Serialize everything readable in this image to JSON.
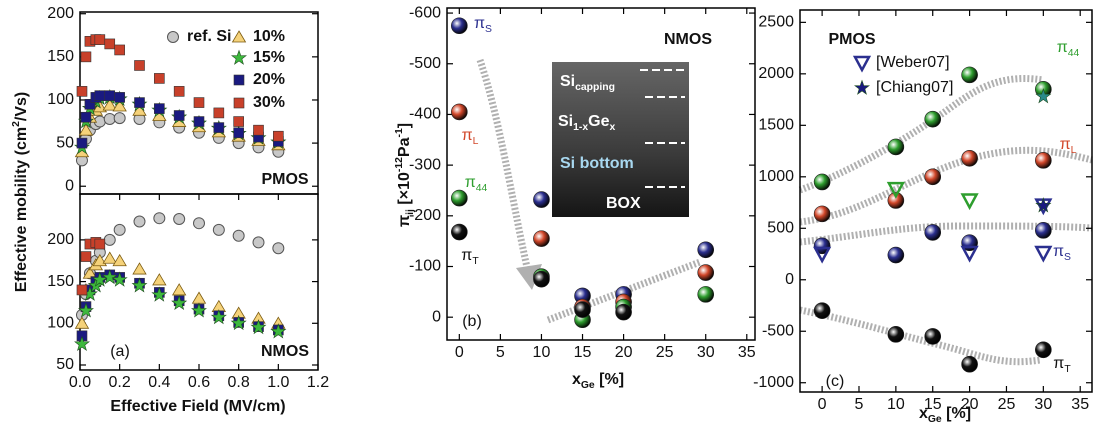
{
  "chart_data": [
    {
      "type": "scatter",
      "xlim": [
        0,
        1.2
      ],
      "ylim": [
        -9,
        202
      ],
      "yticks": [
        0,
        50,
        100,
        150,
        200
      ],
      "ylabel": [
        {
          "text": "Effective mobility (cm"
        },
        {
          "text": "2",
          "shift": "super"
        },
        {
          "text": "/Vs)"
        }
      ],
      "annotations": [
        "PMOS"
      ],
      "x": [
        0.01,
        0.03,
        0.05,
        0.08,
        0.1,
        0.15,
        0.2,
        0.3,
        0.4,
        0.5,
        0.6,
        0.7,
        0.8,
        0.9,
        1.0
      ],
      "series": [
        {
          "name": "ref. Si",
          "marker": "circle",
          "color": "#c8c8c8",
          "values": [
            30,
            55,
            65,
            72,
            75,
            78,
            79,
            78,
            74,
            68,
            62,
            56,
            50,
            45,
            40
          ]
        },
        {
          "name": "10%",
          "marker": "triangle",
          "color": "#f5d27a",
          "values": [
            40,
            65,
            80,
            88,
            92,
            94,
            93,
            88,
            82,
            75,
            69,
            63,
            58,
            53,
            48
          ]
        },
        {
          "name": "15%",
          "marker": "star",
          "color": "#3db83d",
          "values": [
            45,
            75,
            90,
            98,
            102,
            103,
            101,
            95,
            88,
            80,
            73,
            67,
            61,
            56,
            51
          ]
        },
        {
          "name": "20%",
          "marker": "square",
          "color": "#1a1a80",
          "values": [
            50,
            80,
            95,
            103,
            105,
            105,
            103,
            97,
            90,
            82,
            75,
            68,
            62,
            57,
            52
          ]
        },
        {
          "name": "30%",
          "marker": "square",
          "color": "#c8402a",
          "values": [
            110,
            150,
            168,
            170,
            170,
            165,
            158,
            140,
            125,
            110,
            97,
            85,
            75,
            65,
            58
          ]
        }
      ]
    },
    {
      "type": "scatter",
      "xlim": [
        0,
        1.2
      ],
      "ylim": [
        44,
        255
      ],
      "yticks": [
        50,
        100,
        150,
        200
      ],
      "xticks": [
        {
          "value": 0,
          "label": "0.0"
        },
        0.2,
        0.4,
        0.6,
        0.8,
        {
          "value": 1,
          "label": "1.0"
        },
        1.2
      ],
      "xlabel": [
        {
          "text": "Effective Field (MV/cm)"
        }
      ],
      "annotations": [
        "NMOS",
        "(a)"
      ],
      "x": [
        0.01,
        0.03,
        0.05,
        0.08,
        0.1,
        0.15,
        0.2,
        0.3,
        0.4,
        0.5,
        0.6,
        0.7,
        0.8,
        0.9,
        1.0
      ],
      "series": [
        {
          "marker": "circle",
          "color": "#c8c8c8",
          "values": [
            110,
            135,
            160,
            175,
            185,
            200,
            212,
            222,
            226,
            225,
            220,
            212,
            205,
            197,
            190
          ]
        },
        {
          "marker": "triangle",
          "color": "#f5d27a",
          "values": [
            100,
            140,
            160,
            170,
            175,
            178,
            175,
            165,
            152,
            140,
            130,
            120,
            112,
            106,
            100
          ]
        },
        {
          "marker": "square",
          "color": "#1a1a80",
          "values": [
            85,
            120,
            140,
            150,
            155,
            158,
            155,
            148,
            137,
            127,
            117,
            109,
            101,
            96,
            92
          ]
        },
        {
          "marker": "star",
          "color": "#3db83d",
          "values": [
            75,
            115,
            135,
            145,
            152,
            155,
            152,
            145,
            134,
            124,
            115,
            107,
            100,
            95,
            90
          ]
        },
        {
          "marker": "square",
          "color": "#c8402a",
          "values": [
            140,
            180,
            195,
            197,
            195,
            null,
            null,
            null,
            null,
            null,
            null,
            null,
            null,
            null,
            null
          ]
        }
      ]
    },
    {
      "type": "scatter",
      "xlim": [
        -1.5,
        36
      ],
      "ylim": [
        45,
        -610
      ],
      "xticks": [
        0,
        5,
        10,
        15,
        20,
        25,
        30,
        35
      ],
      "yticks": [
        -600,
        -500,
        -400,
        -300,
        -200,
        -100,
        0
      ],
      "ylabel": [
        {
          "text": "π"
        },
        {
          "text": "ij",
          "shift": "sub"
        },
        {
          "text": " [×10"
        },
        {
          "text": "-12",
          "shift": "super"
        },
        {
          "text": "Pa"
        },
        {
          "text": "-1",
          "shift": "super"
        },
        {
          "text": "]"
        }
      ],
      "xlabel": [
        {
          "text": "x"
        },
        {
          "text": "Ge",
          "shift": "sub"
        },
        {
          "text": " [%]"
        }
      ],
      "annotations": [
        "NMOS",
        "(b)"
      ],
      "inset_labels": [
        [
          {
            "text": "Si"
          },
          {
            "text": "capping",
            "shift": "sub"
          }
        ],
        [
          {
            "text": "Si"
          },
          {
            "text": "1-x",
            "shift": "sub"
          },
          {
            "text": "Ge"
          },
          {
            "text": "x",
            "shift": "sub"
          }
        ],
        [
          {
            "text": "Si bottom"
          }
        ],
        [
          {
            "text": "BOX"
          }
        ]
      ],
      "x": [
        0,
        10,
        15,
        20,
        30
      ],
      "series": [
        {
          "name": "πS",
          "marker": "ball",
          "color": "#2b2f8f",
          "values": [
            -575,
            -232,
            -42,
            -45,
            -133
          ]
        },
        {
          "name": "πL",
          "marker": "ball",
          "color": "#d2472a",
          "values": [
            -405,
            -155,
            -20,
            -30,
            -88
          ]
        },
        {
          "name": "π44",
          "marker": "ball",
          "color": "#2e9e2e",
          "values": [
            -235,
            -80,
            5,
            -20,
            -45
          ]
        },
        {
          "name": "πT",
          "marker": "ball",
          "color": "#111111",
          "values": [
            -168,
            -75,
            -15,
            -10,
            null
          ]
        }
      ]
    },
    {
      "type": "scatter",
      "xlim": [
        -3,
        36.6
      ],
      "ylim": [
        -1090,
        2620
      ],
      "xticks": [
        0,
        5,
        10,
        15,
        20,
        25,
        30,
        35
      ],
      "yticks": [
        -1000,
        -500,
        0,
        500,
        1000,
        1500,
        2000,
        2500
      ],
      "xlabel": [
        {
          "text": "x"
        },
        {
          "text": "Ge",
          "shift": "sub"
        },
        {
          "text": " [%]"
        }
      ],
      "annotations": [
        "PMOS",
        "(c)"
      ],
      "x": [
        0,
        10,
        15,
        20,
        30
      ],
      "series": [
        {
          "name": "π44",
          "marker": "ball",
          "color": "#2e9e2e",
          "values": [
            950,
            1290,
            1560,
            1990,
            1850
          ]
        },
        {
          "name": "πL",
          "marker": "ball",
          "color": "#d2472a",
          "values": [
            640,
            770,
            1000,
            1180,
            1160
          ]
        },
        {
          "name": "πS",
          "marker": "ball",
          "color": "#2b2f8f",
          "values": [
            330,
            240,
            460,
            360,
            480
          ]
        },
        {
          "name": "πT",
          "marker": "ball",
          "color": "#111111",
          "values": [
            -300,
            -530,
            -550,
            -820,
            -680
          ]
        },
        {
          "name": "[Weber07]",
          "marker": "triangle-down",
          "color": "#2b2f8f",
          "x": [
            0,
            10,
            20,
            20,
            30,
            30
          ],
          "values": [
            250,
            880,
            770,
            260,
            260,
            720
          ],
          "colors": [
            "#2b2f8f",
            "#2e9e2e",
            "#2e9e2e",
            "#2b2f8f",
            "#2b2f8f",
            "#2b2f8f"
          ]
        },
        {
          "name": "[Chiang07]",
          "marker": "star",
          "color": "#1a1a80",
          "x": [
            30,
            30
          ],
          "values": [
            1780,
            720
          ],
          "colors": [
            "#2a8a8a",
            "#1a1a80"
          ]
        }
      ]
    }
  ]
}
